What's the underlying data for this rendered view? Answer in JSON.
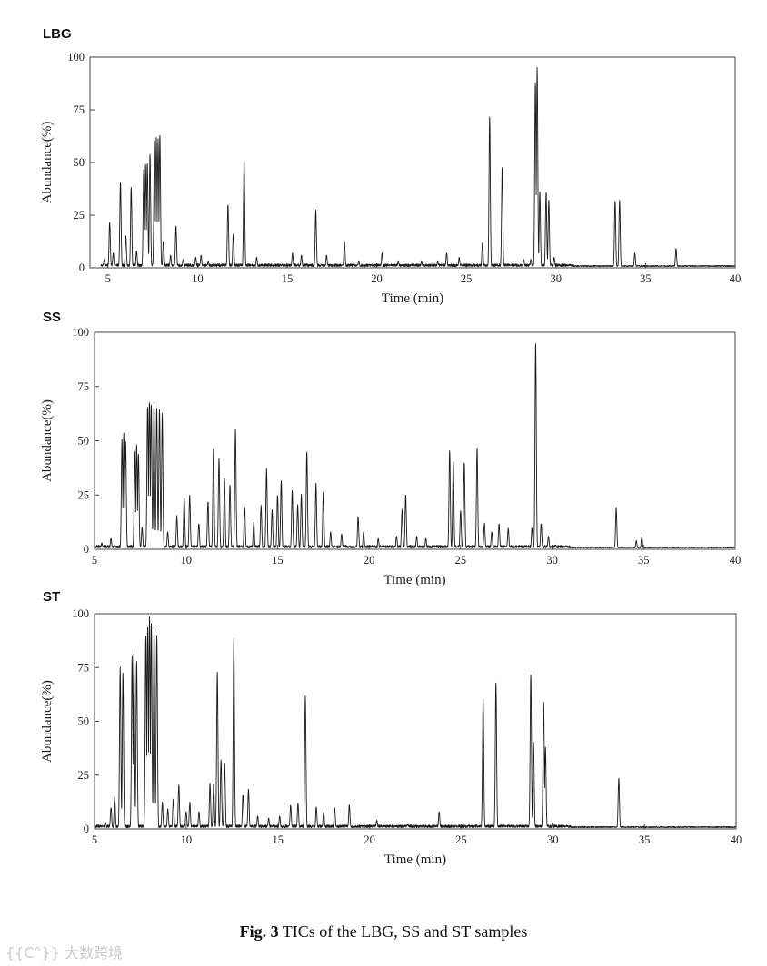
{
  "caption": {
    "bold": "Fig. 3",
    "text": " TICs of the LBG, SS and ST samples"
  },
  "watermark": "{{C°}} 大数跨境",
  "chart_data": [
    {
      "type": "line",
      "panel_label": "LBG",
      "xlabel": "Time (min)",
      "ylabel": "Abundance(%)",
      "xlim": [
        4,
        40
      ],
      "ylim": [
        0,
        100
      ],
      "xticks": [
        5,
        10,
        15,
        20,
        25,
        30,
        35,
        40
      ],
      "yticks": [
        0,
        25,
        50,
        75,
        100
      ],
      "grid": false,
      "baseline_start": 4.6,
      "peaks": [
        {
          "t": 4.8,
          "h": 4
        },
        {
          "t": 5.1,
          "h": 22
        },
        {
          "t": 5.3,
          "h": 7
        },
        {
          "t": 5.7,
          "h": 41
        },
        {
          "t": 6.0,
          "h": 15
        },
        {
          "t": 6.3,
          "h": 38
        },
        {
          "t": 6.6,
          "h": 8
        },
        {
          "t": 7.0,
          "h": 47
        },
        {
          "t": 7.1,
          "h": 49
        },
        {
          "t": 7.2,
          "h": 50
        },
        {
          "t": 7.35,
          "h": 54
        },
        {
          "t": 7.6,
          "h": 60
        },
        {
          "t": 7.7,
          "h": 62
        },
        {
          "t": 7.8,
          "h": 61
        },
        {
          "t": 7.9,
          "h": 63
        },
        {
          "t": 8.1,
          "h": 13
        },
        {
          "t": 8.5,
          "h": 6
        },
        {
          "t": 8.8,
          "h": 20
        },
        {
          "t": 9.2,
          "h": 4
        },
        {
          "t": 9.9,
          "h": 5
        },
        {
          "t": 10.2,
          "h": 6
        },
        {
          "t": 10.6,
          "h": 3
        },
        {
          "t": 11.7,
          "h": 30
        },
        {
          "t": 12.0,
          "h": 16
        },
        {
          "t": 12.6,
          "h": 51
        },
        {
          "t": 13.3,
          "h": 5
        },
        {
          "t": 15.3,
          "h": 7
        },
        {
          "t": 15.8,
          "h": 6
        },
        {
          "t": 16.6,
          "h": 27
        },
        {
          "t": 17.2,
          "h": 6
        },
        {
          "t": 18.2,
          "h": 12
        },
        {
          "t": 19.0,
          "h": 3
        },
        {
          "t": 20.3,
          "h": 7
        },
        {
          "t": 21.2,
          "h": 3
        },
        {
          "t": 22.5,
          "h": 3
        },
        {
          "t": 23.4,
          "h": 3
        },
        {
          "t": 23.9,
          "h": 7
        },
        {
          "t": 24.6,
          "h": 5
        },
        {
          "t": 25.9,
          "h": 12
        },
        {
          "t": 26.3,
          "h": 72
        },
        {
          "t": 27.0,
          "h": 48
        },
        {
          "t": 28.2,
          "h": 4
        },
        {
          "t": 28.6,
          "h": 4
        },
        {
          "t": 28.85,
          "h": 88
        },
        {
          "t": 28.95,
          "h": 95
        },
        {
          "t": 29.1,
          "h": 36
        },
        {
          "t": 29.45,
          "h": 36
        },
        {
          "t": 29.6,
          "h": 32
        },
        {
          "t": 29.9,
          "h": 5
        },
        {
          "t": 33.3,
          "h": 32
        },
        {
          "t": 33.55,
          "h": 32
        },
        {
          "t": 34.4,
          "h": 7
        },
        {
          "t": 36.7,
          "h": 9
        }
      ]
    },
    {
      "type": "line",
      "panel_label": "SS",
      "xlabel": "Time (min)",
      "ylabel": "Abundance(%)",
      "xlim": [
        5,
        40
      ],
      "ylim": [
        0,
        100
      ],
      "xticks": [
        5,
        10,
        15,
        20,
        25,
        30,
        35,
        40
      ],
      "yticks": [
        0,
        25,
        50,
        75,
        100
      ],
      "grid": false,
      "baseline_start": 5.0,
      "peaks": [
        {
          "t": 5.4,
          "h": 3
        },
        {
          "t": 5.9,
          "h": 5
        },
        {
          "t": 6.5,
          "h": 50
        },
        {
          "t": 6.6,
          "h": 53
        },
        {
          "t": 6.7,
          "h": 50
        },
        {
          "t": 7.2,
          "h": 45
        },
        {
          "t": 7.3,
          "h": 48
        },
        {
          "t": 7.4,
          "h": 44
        },
        {
          "t": 7.6,
          "h": 10
        },
        {
          "t": 7.9,
          "h": 66
        },
        {
          "t": 8.0,
          "h": 68
        },
        {
          "t": 8.1,
          "h": 67
        },
        {
          "t": 8.25,
          "h": 66
        },
        {
          "t": 8.4,
          "h": 65
        },
        {
          "t": 8.55,
          "h": 64
        },
        {
          "t": 8.7,
          "h": 62
        },
        {
          "t": 9.0,
          "h": 8
        },
        {
          "t": 9.5,
          "h": 15
        },
        {
          "t": 9.9,
          "h": 24
        },
        {
          "t": 10.2,
          "h": 25
        },
        {
          "t": 10.7,
          "h": 12
        },
        {
          "t": 11.2,
          "h": 22
        },
        {
          "t": 11.5,
          "h": 47
        },
        {
          "t": 11.8,
          "h": 42
        },
        {
          "t": 12.1,
          "h": 32
        },
        {
          "t": 12.4,
          "h": 30
        },
        {
          "t": 12.7,
          "h": 55
        },
        {
          "t": 13.2,
          "h": 20
        },
        {
          "t": 13.7,
          "h": 12
        },
        {
          "t": 14.1,
          "h": 20
        },
        {
          "t": 14.4,
          "h": 37
        },
        {
          "t": 14.7,
          "h": 18
        },
        {
          "t": 15.0,
          "h": 25
        },
        {
          "t": 15.2,
          "h": 32
        },
        {
          "t": 15.8,
          "h": 27
        },
        {
          "t": 16.1,
          "h": 20
        },
        {
          "t": 16.3,
          "h": 25
        },
        {
          "t": 16.6,
          "h": 45
        },
        {
          "t": 17.1,
          "h": 30
        },
        {
          "t": 17.5,
          "h": 26
        },
        {
          "t": 17.9,
          "h": 8
        },
        {
          "t": 18.5,
          "h": 7
        },
        {
          "t": 19.4,
          "h": 15
        },
        {
          "t": 19.7,
          "h": 8
        },
        {
          "t": 20.5,
          "h": 5
        },
        {
          "t": 21.5,
          "h": 6
        },
        {
          "t": 21.8,
          "h": 18
        },
        {
          "t": 22.0,
          "h": 25
        },
        {
          "t": 22.6,
          "h": 6
        },
        {
          "t": 23.1,
          "h": 5
        },
        {
          "t": 24.4,
          "h": 46
        },
        {
          "t": 24.6,
          "h": 40
        },
        {
          "t": 25.0,
          "h": 18
        },
        {
          "t": 25.2,
          "h": 40
        },
        {
          "t": 25.9,
          "h": 47
        },
        {
          "t": 26.3,
          "h": 12
        },
        {
          "t": 26.7,
          "h": 8
        },
        {
          "t": 27.1,
          "h": 12
        },
        {
          "t": 27.6,
          "h": 10
        },
        {
          "t": 28.9,
          "h": 10
        },
        {
          "t": 29.1,
          "h": 95
        },
        {
          "t": 29.4,
          "h": 12
        },
        {
          "t": 29.8,
          "h": 6
        },
        {
          "t": 30.2,
          "h": 2
        },
        {
          "t": 33.5,
          "h": 19
        },
        {
          "t": 34.6,
          "h": 4
        },
        {
          "t": 34.9,
          "h": 6
        }
      ]
    },
    {
      "type": "line",
      "panel_label": "ST",
      "xlabel": "Time (min)",
      "ylabel": "Abundance(%)",
      "xlim": [
        5,
        40
      ],
      "ylim": [
        0,
        100
      ],
      "xticks": [
        5,
        10,
        15,
        20,
        25,
        30,
        35,
        40
      ],
      "yticks": [
        0,
        25,
        50,
        75,
        100
      ],
      "grid": false,
      "baseline_start": 5.0,
      "peaks": [
        {
          "t": 5.6,
          "h": 3
        },
        {
          "t": 5.9,
          "h": 10
        },
        {
          "t": 6.1,
          "h": 15
        },
        {
          "t": 6.4,
          "h": 75
        },
        {
          "t": 6.55,
          "h": 72
        },
        {
          "t": 7.05,
          "h": 80
        },
        {
          "t": 7.15,
          "h": 82
        },
        {
          "t": 7.3,
          "h": 78
        },
        {
          "t": 7.8,
          "h": 90
        },
        {
          "t": 7.9,
          "h": 94
        },
        {
          "t": 8.0,
          "h": 98
        },
        {
          "t": 8.1,
          "h": 95
        },
        {
          "t": 8.25,
          "h": 92
        },
        {
          "t": 8.4,
          "h": 90
        },
        {
          "t": 8.7,
          "h": 12
        },
        {
          "t": 9.0,
          "h": 9
        },
        {
          "t": 9.3,
          "h": 14
        },
        {
          "t": 9.6,
          "h": 20
        },
        {
          "t": 10.0,
          "h": 8
        },
        {
          "t": 10.2,
          "h": 12
        },
        {
          "t": 10.7,
          "h": 8
        },
        {
          "t": 11.3,
          "h": 21
        },
        {
          "t": 11.5,
          "h": 21
        },
        {
          "t": 11.7,
          "h": 73
        },
        {
          "t": 11.9,
          "h": 32
        },
        {
          "t": 12.1,
          "h": 30
        },
        {
          "t": 12.6,
          "h": 88
        },
        {
          "t": 13.1,
          "h": 16
        },
        {
          "t": 13.4,
          "h": 18
        },
        {
          "t": 13.9,
          "h": 6
        },
        {
          "t": 14.5,
          "h": 5
        },
        {
          "t": 15.1,
          "h": 6
        },
        {
          "t": 15.7,
          "h": 11
        },
        {
          "t": 16.1,
          "h": 12
        },
        {
          "t": 16.5,
          "h": 62
        },
        {
          "t": 17.1,
          "h": 10
        },
        {
          "t": 17.5,
          "h": 8
        },
        {
          "t": 18.1,
          "h": 10
        },
        {
          "t": 18.9,
          "h": 11
        },
        {
          "t": 20.4,
          "h": 4
        },
        {
          "t": 22.1,
          "h": 2
        },
        {
          "t": 23.8,
          "h": 8
        },
        {
          "t": 26.2,
          "h": 61
        },
        {
          "t": 26.9,
          "h": 68
        },
        {
          "t": 28.8,
          "h": 72
        },
        {
          "t": 28.95,
          "h": 40
        },
        {
          "t": 29.5,
          "h": 59
        },
        {
          "t": 29.6,
          "h": 38
        },
        {
          "t": 30.0,
          "h": 3
        },
        {
          "t": 33.6,
          "h": 24
        },
        {
          "t": 34.9,
          "h": 1
        }
      ]
    }
  ]
}
